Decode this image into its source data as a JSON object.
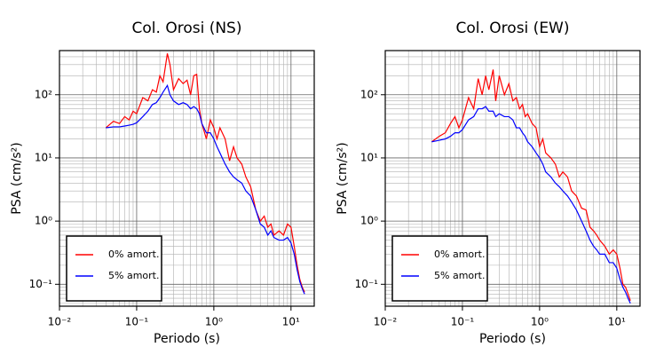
{
  "chart_data": [
    {
      "type": "line",
      "title": "Col. Orosi (NS)",
      "x_label": "Periodo (s)",
      "y_label": "PSA (cm/s²)",
      "log_x": true,
      "log_y": true,
      "grid": true,
      "legend": "lower left",
      "xlim": [
        0.01,
        20
      ],
      "ylim": [
        0.045,
        500
      ],
      "xticks": [
        {
          "value": 0.01,
          "label": "10⁻²"
        },
        {
          "value": 0.1,
          "label": "10⁻¹"
        },
        {
          "value": 1,
          "label": "10⁰"
        },
        {
          "value": 10,
          "label": "10¹"
        }
      ],
      "yticks": [
        {
          "value": 0.1,
          "label": "10⁻¹"
        },
        {
          "value": 1,
          "label": "10⁰"
        },
        {
          "value": 10,
          "label": "10¹"
        },
        {
          "value": 100,
          "label": "10²"
        }
      ],
      "xminorticks": [
        0.02,
        0.03,
        0.04,
        0.05,
        0.06,
        0.07,
        0.08,
        0.09,
        0.2,
        0.3,
        0.4,
        0.5,
        0.6,
        0.7,
        0.8,
        0.9,
        2,
        3,
        4,
        5,
        6,
        7,
        8,
        9
      ],
      "yminorticks": [
        0.05,
        0.06,
        0.07,
        0.08,
        0.09,
        0.2,
        0.3,
        0.4,
        0.5,
        0.6,
        0.7,
        0.8,
        0.9,
        2,
        3,
        4,
        5,
        6,
        7,
        8,
        9,
        20,
        30,
        40,
        50,
        60,
        70,
        80,
        90,
        200,
        300,
        400
      ],
      "x": [
        0.04,
        0.05,
        0.06,
        0.07,
        0.08,
        0.09,
        0.1,
        0.12,
        0.14,
        0.16,
        0.18,
        0.2,
        0.22,
        0.25,
        0.27,
        0.3,
        0.35,
        0.4,
        0.45,
        0.5,
        0.55,
        0.6,
        0.65,
        0.7,
        0.8,
        0.9,
        1.0,
        1.1,
        1.2,
        1.4,
        1.6,
        1.8,
        2.0,
        2.3,
        2.6,
        3.0,
        3.5,
        4.0,
        4.5,
        5.0,
        5.5,
        6,
        7,
        8,
        9,
        10,
        11,
        12,
        13,
        14,
        15
      ],
      "series": [
        {
          "name": "0% amort.",
          "color": "#ff0000",
          "values": [
            30,
            38,
            35,
            45,
            40,
            55,
            50,
            90,
            80,
            120,
            110,
            200,
            160,
            450,
            300,
            120,
            180,
            150,
            170,
            100,
            200,
            210,
            60,
            35,
            20,
            40,
            30,
            20,
            30,
            20,
            9,
            15,
            10,
            8,
            5,
            3.5,
            1.5,
            1.0,
            1.2,
            0.8,
            0.9,
            0.6,
            0.7,
            0.6,
            0.9,
            0.8,
            0.4,
            0.2,
            0.12,
            0.09,
            0.075
          ]
        },
        {
          "name": "5% amort.",
          "color": "#0000ff",
          "values": [
            30,
            31,
            31,
            32,
            33,
            34,
            36,
            45,
            55,
            70,
            75,
            90,
            110,
            140,
            100,
            80,
            70,
            75,
            70,
            60,
            65,
            60,
            50,
            35,
            25,
            25,
            20,
            15,
            12,
            8,
            6,
            5,
            4.5,
            4,
            3,
            2.5,
            1.5,
            0.9,
            0.8,
            0.6,
            0.7,
            0.55,
            0.5,
            0.5,
            0.55,
            0.45,
            0.3,
            0.17,
            0.11,
            0.085,
            0.07
          ]
        }
      ]
    },
    {
      "type": "line",
      "title": "Col. Orosi (EW)",
      "x_label": "Periodo (s)",
      "y_label": "PSA (cm/s²)",
      "log_x": true,
      "log_y": true,
      "grid": true,
      "legend": "lower left",
      "xlim": [
        0.01,
        20
      ],
      "ylim": [
        0.045,
        500
      ],
      "xticks": [
        {
          "value": 0.01,
          "label": "10⁻²"
        },
        {
          "value": 0.1,
          "label": "10⁻¹"
        },
        {
          "value": 1,
          "label": "10⁰"
        },
        {
          "value": 10,
          "label": "10¹"
        }
      ],
      "yticks": [
        {
          "value": 0.1,
          "label": "10⁻¹"
        },
        {
          "value": 1,
          "label": "10⁰"
        },
        {
          "value": 10,
          "label": "10¹"
        },
        {
          "value": 100,
          "label": "10²"
        }
      ],
      "xminorticks": [
        0.02,
        0.03,
        0.04,
        0.05,
        0.06,
        0.07,
        0.08,
        0.09,
        0.2,
        0.3,
        0.4,
        0.5,
        0.6,
        0.7,
        0.8,
        0.9,
        2,
        3,
        4,
        5,
        6,
        7,
        8,
        9
      ],
      "yminorticks": [
        0.05,
        0.06,
        0.07,
        0.08,
        0.09,
        0.2,
        0.3,
        0.4,
        0.5,
        0.6,
        0.7,
        0.8,
        0.9,
        2,
        3,
        4,
        5,
        6,
        7,
        8,
        9,
        20,
        30,
        40,
        50,
        60,
        70,
        80,
        90,
        200,
        300,
        400
      ],
      "x": [
        0.04,
        0.05,
        0.06,
        0.07,
        0.08,
        0.09,
        0.1,
        0.12,
        0.14,
        0.16,
        0.18,
        0.2,
        0.22,
        0.25,
        0.27,
        0.3,
        0.35,
        0.4,
        0.45,
        0.5,
        0.55,
        0.6,
        0.65,
        0.7,
        0.8,
        0.9,
        1.0,
        1.1,
        1.2,
        1.4,
        1.6,
        1.8,
        2.0,
        2.3,
        2.6,
        3.0,
        3.5,
        4.0,
        4.5,
        5.0,
        5.5,
        6,
        7,
        8,
        9,
        10,
        11,
        12,
        13,
        14,
        15
      ],
      "series": [
        {
          "name": "0% amort.",
          "color": "#ff0000",
          "values": [
            18,
            22,
            25,
            35,
            45,
            30,
            40,
            90,
            60,
            180,
            100,
            200,
            120,
            250,
            80,
            200,
            100,
            150,
            80,
            90,
            60,
            70,
            45,
            50,
            35,
            30,
            15,
            20,
            12,
            10,
            8,
            5,
            6,
            5,
            3,
            2.5,
            1.6,
            1.5,
            0.8,
            0.7,
            0.6,
            0.5,
            0.4,
            0.3,
            0.35,
            0.3,
            0.18,
            0.1,
            0.09,
            0.07,
            0.055
          ]
        },
        {
          "name": "5% amort.",
          "color": "#0000ff",
          "values": [
            18,
            19,
            20,
            22,
            25,
            25,
            28,
            40,
            45,
            60,
            60,
            65,
            55,
            55,
            45,
            50,
            45,
            45,
            40,
            30,
            30,
            25,
            22,
            18,
            15,
            12,
            10,
            8,
            6,
            5,
            4,
            3.5,
            3,
            2.5,
            2,
            1.5,
            1.0,
            0.7,
            0.5,
            0.4,
            0.35,
            0.3,
            0.3,
            0.22,
            0.22,
            0.18,
            0.12,
            0.09,
            0.075,
            0.06,
            0.05
          ]
        }
      ]
    }
  ]
}
